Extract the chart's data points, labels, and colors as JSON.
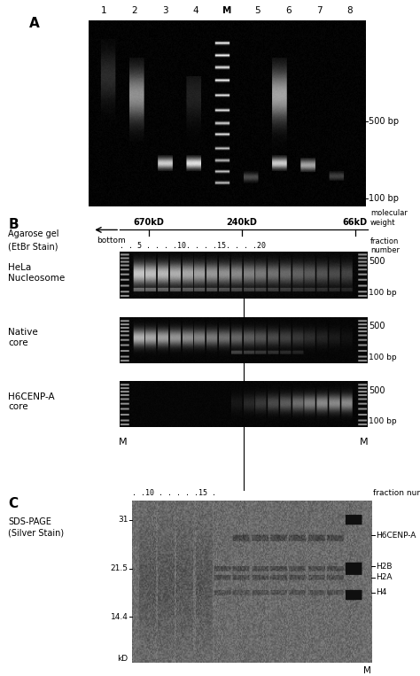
{
  "bg_color": "#ffffff",
  "fig_w": 4.74,
  "fig_h": 7.63,
  "panel_A": {
    "label": "A",
    "lane_labels": [
      "1",
      "2",
      "3",
      "4",
      "M",
      "5",
      "6",
      "7",
      "8"
    ],
    "label_500bp": "500 bp",
    "label_100bp": "100 bp"
  },
  "panel_B": {
    "label": "B",
    "left_label1": "Agarose gel",
    "left_label2": "(EtBr Stain)",
    "arrow_label": "bottom",
    "markers_kD": [
      "670kD",
      "240kD",
      "66kD"
    ],
    "mol_weight_label": "molecular\nweight",
    "fraction_label": "fraction\nnumber",
    "fraction_ticks": ". . 5 . . . .10. . . .15. . . .20",
    "gel1_label1": "HeLa",
    "gel1_label2": "Nucleosome",
    "gel2_label1": "Native",
    "gel2_label2": "core",
    "gel3_label1": "H6CENP-A",
    "gel3_label2": "core",
    "M_label": "M",
    "bp500": "500",
    "bp100": "100 bp"
  },
  "panel_C": {
    "label": "C",
    "left_label1": "SDS-PAGE",
    "left_label2": "(Silver Stain)",
    "fraction_label": "fraction number",
    "fraction_ticks": ". .10 . . . . .15 .",
    "mw_labels": [
      "31",
      "21.5",
      "14.4"
    ],
    "kD_label": "kD",
    "protein_labels": [
      "H6CENP-A",
      "H2B",
      "H2A",
      "H4"
    ],
    "M_label": "M"
  }
}
